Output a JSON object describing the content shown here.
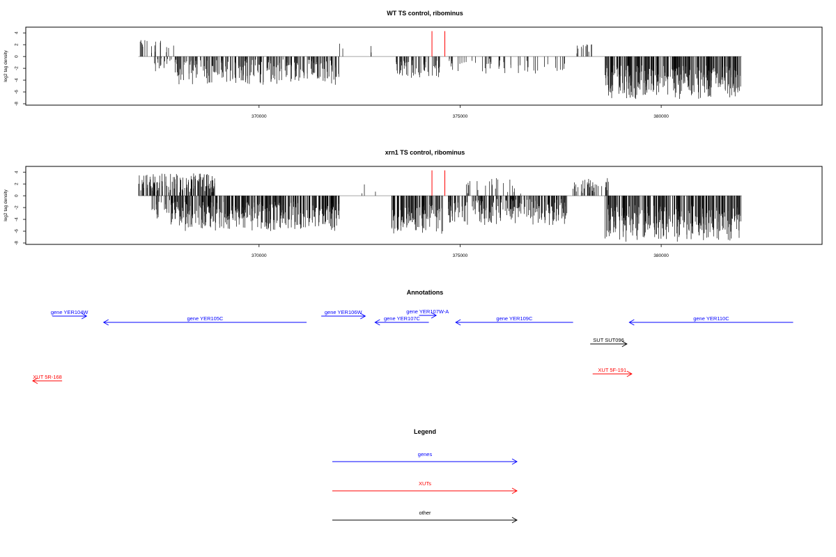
{
  "chart_data": [
    {
      "type": "bar",
      "title": "WT TS control, ribominus",
      "xlabel": "",
      "ylabel": "log2 tag density",
      "xlim": [
        364200,
        384000
      ],
      "ylim": [
        -8,
        4.5
      ],
      "x_ticks": [
        "370000",
        "375000",
        "380000"
      ],
      "y_ticks": [
        "4",
        "2",
        "0",
        "-2",
        "-4",
        "-6",
        "-8"
      ],
      "markers": [
        {
          "x": 374300,
          "color": "#ff0000"
        },
        {
          "x": 374620,
          "color": "#ff0000"
        }
      ],
      "density_regions": [
        {
          "from": 367000,
          "to": 367900,
          "min": 0.4,
          "max": 2.8,
          "density": 0.22
        },
        {
          "from": 367300,
          "to": 368000,
          "min": -2.5,
          "max": -0.3,
          "density": 0.25
        },
        {
          "from": 367900,
          "to": 372000,
          "min": -4.8,
          "max": -0.5,
          "density": 0.62
        },
        {
          "from": 371950,
          "to": 372850,
          "min": 0.3,
          "max": 2.4,
          "density": 0.05
        },
        {
          "from": 373400,
          "to": 374500,
          "min": -3.8,
          "max": -0.5,
          "density": 0.55
        },
        {
          "from": 374600,
          "to": 377600,
          "min": -3.0,
          "max": -0.3,
          "density": 0.18
        },
        {
          "from": 377900,
          "to": 378400,
          "min": 0.4,
          "max": 2.2,
          "density": 0.25
        },
        {
          "from": 378600,
          "to": 382000,
          "min": -7.2,
          "max": -1.5,
          "density": 0.95
        }
      ]
    },
    {
      "type": "bar",
      "title": "xrn1 TS control, ribominus",
      "xlabel": "",
      "ylabel": "log2 tag density",
      "xlim": [
        364200,
        384000
      ],
      "ylim": [
        -8,
        4.5
      ],
      "x_ticks": [
        "370000",
        "375000",
        "380000"
      ],
      "y_ticks": [
        "4",
        "2",
        "0",
        "-2",
        "-4",
        "-6",
        "-8"
      ],
      "markers": [
        {
          "x": 374300,
          "color": "#ff0000"
        },
        {
          "x": 374620,
          "color": "#ff0000"
        }
      ],
      "density_regions": [
        {
          "from": 367000,
          "to": 368900,
          "min": 0.5,
          "max": 3.8,
          "density": 0.7
        },
        {
          "from": 367300,
          "to": 368000,
          "min": -4.0,
          "max": -0.5,
          "density": 0.45
        },
        {
          "from": 367800,
          "to": 372000,
          "min": -6.0,
          "max": -1.0,
          "density": 0.95
        },
        {
          "from": 372500,
          "to": 373100,
          "min": 0.3,
          "max": 2.0,
          "density": 0.06
        },
        {
          "from": 373300,
          "to": 374600,
          "min": -6.5,
          "max": -1.5,
          "density": 0.92
        },
        {
          "from": 374700,
          "to": 377700,
          "min": -5.0,
          "max": -0.5,
          "density": 0.75
        },
        {
          "from": 375000,
          "to": 376600,
          "min": 0.3,
          "max": 3.0,
          "density": 0.15
        },
        {
          "from": 377800,
          "to": 378700,
          "min": 0.4,
          "max": 3.0,
          "density": 0.45
        },
        {
          "from": 378600,
          "to": 382000,
          "min": -7.8,
          "max": -1.5,
          "density": 0.98
        }
      ]
    }
  ],
  "annotations": {
    "title": "Annotations",
    "features": [
      {
        "label": "gene YER104W",
        "kind": "gene",
        "strand": "+",
        "from": 364800,
        "to": 365500
      },
      {
        "label": "gene YER105C",
        "kind": "gene",
        "strand": "-",
        "from": 365850,
        "to": 370000
      },
      {
        "label": "gene YER106W",
        "kind": "gene",
        "strand": "+",
        "from": 370300,
        "to": 371200
      },
      {
        "label": "gene YER107C",
        "kind": "gene",
        "strand": "-",
        "from": 371400,
        "to": 372500
      },
      {
        "label": "gene YER107W-A",
        "kind": "gene",
        "strand": "+",
        "from": 372300,
        "to": 372650
      },
      {
        "label": "gene YER109C",
        "kind": "gene",
        "strand": "-",
        "from": 373050,
        "to": 375450
      },
      {
        "label": "gene YER110C",
        "kind": "gene",
        "strand": "-",
        "from": 376600,
        "to": 379950
      },
      {
        "label": "SUT SUT096",
        "kind": "other",
        "strand": "+",
        "from": 375800,
        "to": 376550
      },
      {
        "label": "XUT 5F-191",
        "kind": "xut",
        "strand": "+",
        "from": 375850,
        "to": 376650
      },
      {
        "label": "XUT 5R-168",
        "kind": "xut",
        "strand": "-",
        "from": 364400,
        "to": 365000
      }
    ]
  },
  "legend": {
    "title": "Legend",
    "entries": [
      {
        "label": "genes",
        "color": "#0000ff"
      },
      {
        "label": "XUTs",
        "color": "#ff0000"
      },
      {
        "label": "other",
        "color": "#000000"
      }
    ]
  },
  "colors": {
    "gene": "#0000ff",
    "xut": "#ff0000",
    "other": "#000000",
    "baseline": "#888888"
  }
}
